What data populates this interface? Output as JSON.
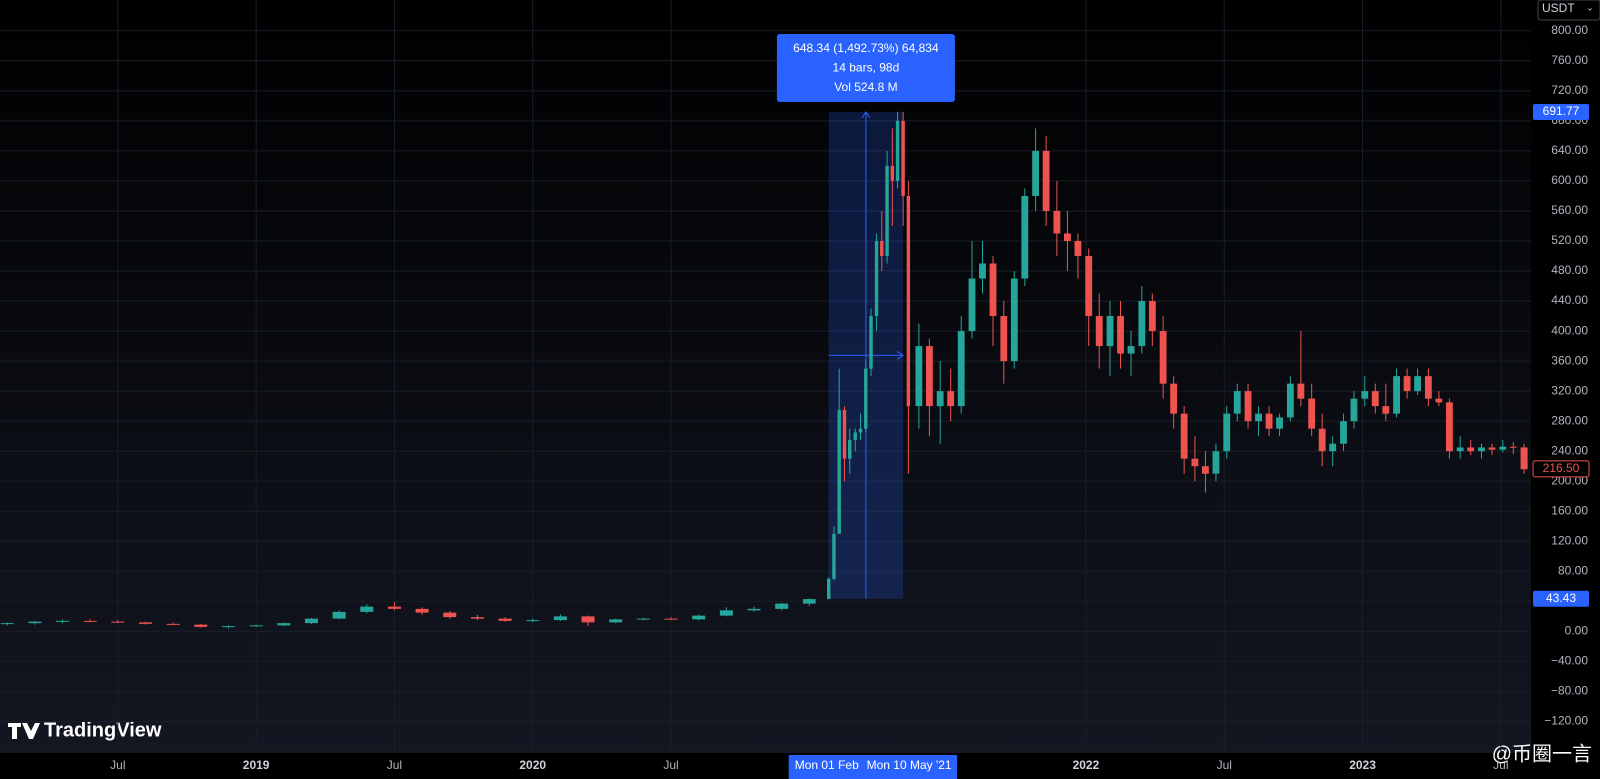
{
  "chart_data": {
    "type": "candlestick",
    "currency": "USDT",
    "watermark": "TradingView",
    "credit": "@币圈一言",
    "up_color": "#26a69a",
    "down_color": "#ef5350",
    "x": [
      2018.1,
      2018.2,
      2018.3,
      2018.4,
      2018.5,
      2018.6,
      2018.7,
      2018.8,
      2018.9,
      2019.0,
      2019.1,
      2019.2,
      2019.3,
      2019.4,
      2019.5,
      2019.6,
      2019.7,
      2019.8,
      2019.9,
      2020.0,
      2020.1,
      2020.2,
      2020.3,
      2020.4,
      2020.5,
      2020.6,
      2020.7,
      2020.8,
      2020.9,
      2021.0,
      2021.07,
      2021.089,
      2021.108,
      2021.127,
      2021.146,
      2021.166,
      2021.185,
      2021.204,
      2021.223,
      2021.243,
      2021.262,
      2021.281,
      2021.3,
      2021.319,
      2021.339,
      2021.358,
      2021.396,
      2021.434,
      2021.473,
      2021.511,
      2021.549,
      2021.588,
      2021.626,
      2021.664,
      2021.703,
      2021.741,
      2021.779,
      2021.818,
      2021.856,
      2021.895,
      2021.933,
      2021.971,
      2022.01,
      2022.048,
      2022.087,
      2022.125,
      2022.163,
      2022.202,
      2022.24,
      2022.279,
      2022.317,
      2022.355,
      2022.394,
      2022.432,
      2022.47,
      2022.509,
      2022.547,
      2022.586,
      2022.624,
      2022.662,
      2022.7,
      2022.739,
      2022.777,
      2022.816,
      2022.854,
      2022.892,
      2022.931,
      2022.969,
      2023.008,
      2023.046,
      2023.084,
      2023.123,
      2023.161,
      2023.199,
      2023.238,
      2023.276,
      2023.314,
      2023.353,
      2023.391,
      2023.43,
      2023.468,
      2023.507,
      2023.545,
      2023.584
    ],
    "open": [
      10,
      11,
      13,
      14,
      13,
      12,
      10,
      9,
      6,
      7,
      8,
      11,
      17,
      26,
      33,
      30,
      25,
      19,
      17,
      14,
      15,
      20,
      12,
      16,
      17,
      16,
      21,
      28,
      30,
      37,
      43,
      70,
      130,
      295,
      230,
      255,
      265,
      270,
      350,
      420,
      520,
      500,
      620,
      600,
      680,
      580,
      300,
      380,
      300,
      320,
      300,
      400,
      470,
      490,
      420,
      360,
      470,
      580,
      640,
      560,
      530,
      520,
      500,
      420,
      380,
      420,
      370,
      380,
      440,
      400,
      330,
      290,
      230,
      220,
      210,
      240,
      290,
      320,
      280,
      290,
      270,
      285,
      330,
      310,
      270,
      240,
      250,
      280,
      310,
      320,
      300,
      290,
      340,
      320,
      340,
      310,
      305,
      240,
      245,
      240,
      245,
      242,
      246,
      245
    ],
    "high": [
      12,
      14,
      16,
      16,
      15,
      13,
      12,
      10,
      8,
      9,
      12,
      18,
      28,
      36,
      39,
      32,
      27,
      22,
      19,
      17,
      23,
      21,
      17,
      18,
      19,
      22,
      32,
      33,
      38,
      44,
      72,
      140,
      350,
      300,
      270,
      270,
      290,
      360,
      430,
      530,
      560,
      640,
      670,
      692,
      692,
      600,
      410,
      390,
      360,
      350,
      420,
      520,
      520,
      500,
      440,
      480,
      590,
      670,
      660,
      600,
      560,
      530,
      510,
      450,
      440,
      440,
      400,
      460,
      450,
      420,
      340,
      300,
      260,
      240,
      250,
      300,
      330,
      330,
      300,
      300,
      290,
      340,
      400,
      330,
      290,
      260,
      290,
      320,
      340,
      330,
      330,
      350,
      350,
      350,
      350,
      320,
      310,
      260,
      255,
      250,
      250,
      255,
      252,
      250
    ],
    "low": [
      8,
      9,
      11,
      12,
      11,
      9,
      8,
      5,
      4,
      6,
      7,
      10,
      16,
      24,
      28,
      22,
      17,
      15,
      13,
      12,
      14,
      7,
      11,
      15,
      15,
      15,
      20,
      26,
      28,
      34,
      43,
      68,
      130,
      200,
      210,
      240,
      255,
      265,
      340,
      400,
      480,
      490,
      540,
      590,
      540,
      210,
      270,
      260,
      250,
      280,
      290,
      390,
      450,
      380,
      330,
      350,
      460,
      560,
      540,
      500,
      480,
      470,
      380,
      350,
      340,
      350,
      340,
      370,
      380,
      310,
      270,
      210,
      200,
      185,
      200,
      230,
      280,
      270,
      260,
      260,
      260,
      280,
      300,
      260,
      220,
      220,
      240,
      270,
      300,
      290,
      280,
      285,
      310,
      315,
      300,
      300,
      230,
      230,
      235,
      230,
      235,
      238,
      236,
      210
    ],
    "close": [
      11,
      13,
      14,
      13,
      12,
      10,
      9,
      6,
      7,
      8,
      11,
      17,
      26,
      33,
      30,
      25,
      19,
      17,
      14,
      15,
      20,
      12,
      16,
      17,
      16,
      21,
      28,
      30,
      37,
      43,
      70,
      130,
      295,
      230,
      255,
      265,
      270,
      350,
      420,
      520,
      500,
      620,
      600,
      680,
      580,
      300,
      380,
      300,
      320,
      300,
      400,
      470,
      490,
      420,
      360,
      470,
      580,
      640,
      560,
      530,
      520,
      500,
      420,
      380,
      420,
      370,
      380,
      440,
      400,
      330,
      290,
      230,
      220,
      210,
      240,
      290,
      320,
      280,
      290,
      270,
      285,
      330,
      310,
      270,
      240,
      250,
      280,
      310,
      320,
      300,
      290,
      340,
      320,
      340,
      310,
      305,
      240,
      245,
      240,
      245,
      242,
      246,
      245,
      216
    ],
    "xlim": [
      2018.074,
      2023.609
    ],
    "xticks": [
      {
        "value": 2018.5,
        "label": "Jul"
      },
      2019,
      {
        "value": 2019.5,
        "label": "Jul"
      },
      2020,
      {
        "value": 2020.5,
        "label": "Jul"
      },
      2022,
      {
        "value": 2022.5,
        "label": "Jul"
      },
      2023,
      {
        "value": 2023.5,
        "label": "Jul"
      }
    ],
    "ylim": [
      -162,
      841
    ],
    "yticks": [
      {
        "value": -120,
        "label": "−120.00"
      },
      {
        "value": -80,
        "label": "−80.00"
      },
      {
        "value": -40,
        "label": "−40.00"
      },
      {
        "value": 0,
        "label": "0.00"
      },
      {
        "value": 40,
        "label": "40.00"
      },
      {
        "value": 80,
        "label": "80.00"
      },
      {
        "value": 120,
        "label": "120.00"
      },
      {
        "value": 160,
        "label": "160.00"
      },
      {
        "value": 200,
        "label": "200.00"
      },
      {
        "value": 240,
        "label": "240.00"
      },
      {
        "value": 280,
        "label": "280.00"
      },
      {
        "value": 320,
        "label": "320.00"
      },
      {
        "value": 360,
        "label": "360.00"
      },
      {
        "value": 400,
        "label": "400.00"
      },
      {
        "value": 440,
        "label": "440.00"
      },
      {
        "value": 480,
        "label": "480.00"
      },
      {
        "value": 520,
        "label": "520.00"
      },
      {
        "value": 560,
        "label": "560.00"
      },
      {
        "value": 600,
        "label": "600.00"
      },
      {
        "value": 640,
        "label": "640.00"
      },
      {
        "value": 680,
        "label": "680.00"
      },
      {
        "value": 720,
        "label": "720.00"
      },
      {
        "value": 760,
        "label": "760.00"
      },
      {
        "value": 800,
        "label": "800.00"
      }
    ],
    "grid": true,
    "last_price": {
      "value": 216.5,
      "label": "216.50"
    },
    "measure": {
      "x": [
        2021.07,
        2021.339
      ],
      "from": 43.43,
      "to": 691.77,
      "start_label": "Mon 01 Feb",
      "end_label": "Mon 10 May '21",
      "lines": [
        "648.34 (1,492.73%) 64,834",
        "14 bars, 98d",
        "Vol 524.8 M"
      ]
    }
  }
}
